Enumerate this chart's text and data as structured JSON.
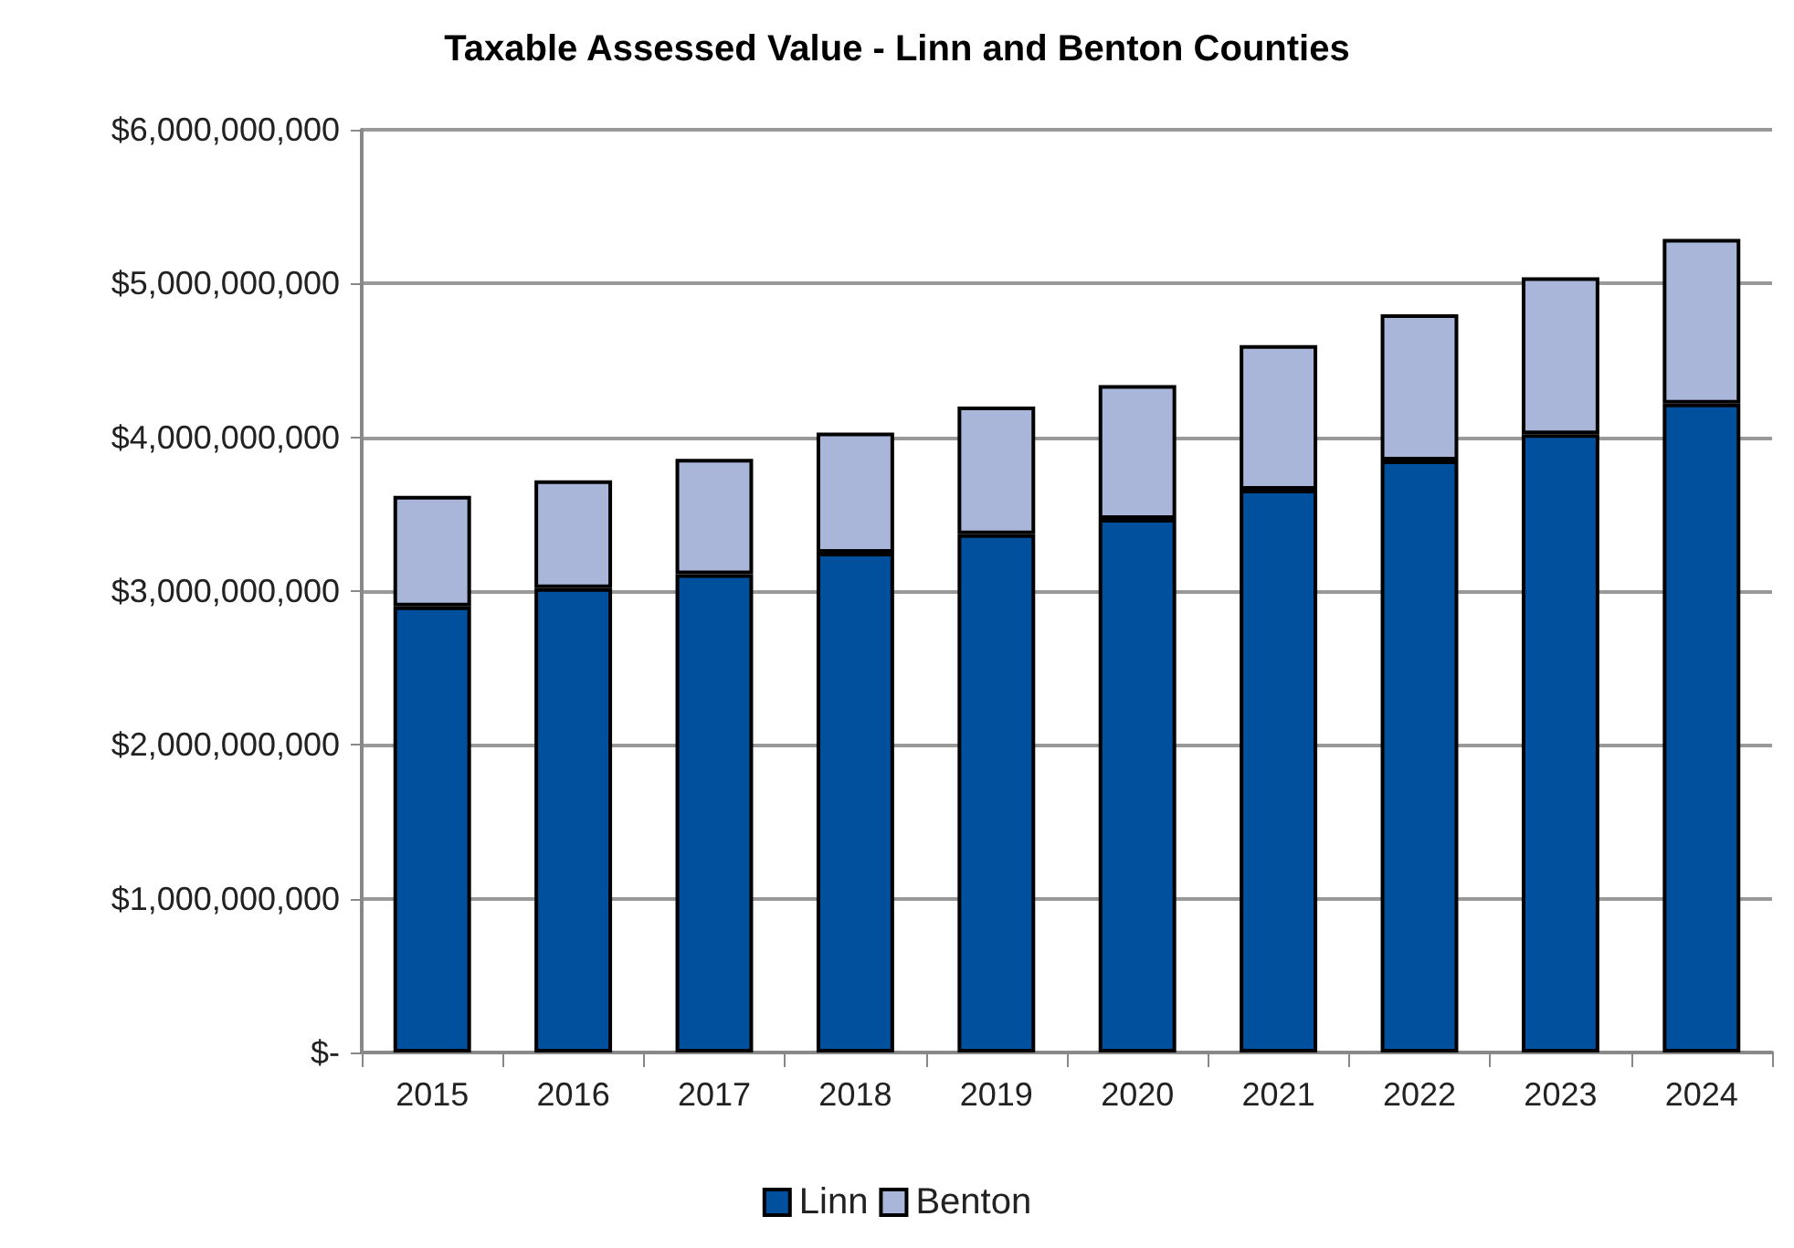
{
  "chart_data": {
    "type": "bar",
    "title": "Taxable Assessed Value - Linn and Benton Counties",
    "categories": [
      "2015",
      "2016",
      "2017",
      "2018",
      "2019",
      "2020",
      "2021",
      "2022",
      "2023",
      "2024"
    ],
    "stacked": true,
    "series": [
      {
        "name": "Linn",
        "color": "#00509e",
        "values": [
          2900000000,
          3020000000,
          3110000000,
          3250000000,
          3370000000,
          3470000000,
          3660000000,
          3850000000,
          4020000000,
          4220000000
        ]
      },
      {
        "name": "Benton",
        "color": "#a9b6d9",
        "values": [
          720000000,
          700000000,
          750000000,
          780000000,
          830000000,
          870000000,
          940000000,
          950000000,
          1020000000,
          1070000000
        ]
      }
    ],
    "ylim": [
      0,
      6000000000
    ],
    "yticks": [
      {
        "value": 0,
        "label": "$-"
      },
      {
        "value": 1000000000,
        "label": "$1,000,000,000"
      },
      {
        "value": 2000000000,
        "label": "$2,000,000,000"
      },
      {
        "value": 3000000000,
        "label": "$3,000,000,000"
      },
      {
        "value": 4000000000,
        "label": "$4,000,000,000"
      },
      {
        "value": 5000000000,
        "label": "$5,000,000,000"
      },
      {
        "value": 6000000000,
        "label": "$6,000,000,000"
      }
    ],
    "grid": "y",
    "legend": "bottom"
  }
}
